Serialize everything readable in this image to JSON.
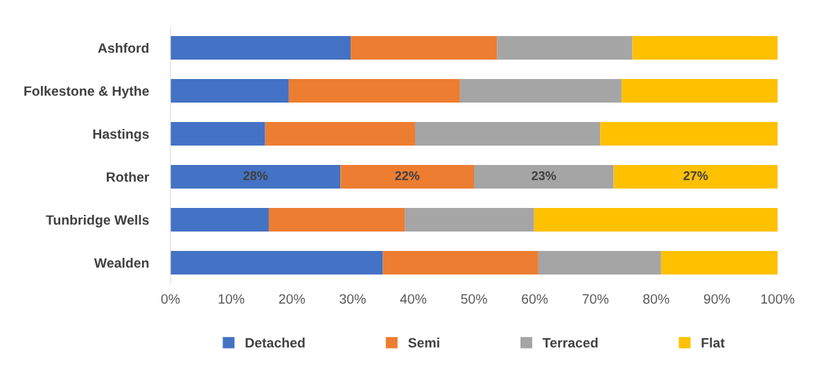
{
  "chart_data": {
    "type": "bar",
    "orientation": "horizontal",
    "stacked": true,
    "categories": [
      "Ashford",
      "Folkestone & Hythe",
      "Hastings",
      "Rother",
      "Tunbridge Wells",
      "Wealden"
    ],
    "series": [
      {
        "name": "Detached",
        "color": "#4472c4",
        "values": [
          29.7,
          19.5,
          15.6,
          28,
          16.2,
          35.0
        ],
        "value_labels": [
          null,
          null,
          null,
          "28%",
          null,
          null
        ]
      },
      {
        "name": "Semi",
        "color": "#ed7d31",
        "values": [
          24.1,
          28.2,
          24.7,
          22,
          22.4,
          25.6
        ],
        "value_labels": [
          null,
          null,
          null,
          "22%",
          null,
          null
        ]
      },
      {
        "name": "Terraced",
        "color": "#a5a5a5",
        "values": [
          22.3,
          26.6,
          30.5,
          23,
          21.3,
          20.2
        ],
        "value_labels": [
          null,
          null,
          null,
          "23%",
          null,
          null
        ]
      },
      {
        "name": "Flat",
        "color": "#ffc000",
        "values": [
          23.9,
          25.7,
          29.2,
          27,
          40.1,
          19.2
        ],
        "value_labels": [
          null,
          null,
          null,
          "27%",
          null,
          null
        ]
      }
    ],
    "xlim": [
      0,
      100
    ],
    "xticks": [
      {
        "value": 0,
        "label": "0%"
      },
      {
        "value": 10,
        "label": "10%"
      },
      {
        "value": 20,
        "label": "20%"
      },
      {
        "value": 30,
        "label": "30%"
      },
      {
        "value": 40,
        "label": "40%"
      },
      {
        "value": 50,
        "label": "50%"
      },
      {
        "value": 60,
        "label": "60%"
      },
      {
        "value": 70,
        "label": "70%"
      },
      {
        "value": 80,
        "label": "80%"
      },
      {
        "value": 90,
        "label": "90%"
      },
      {
        "value": 100,
        "label": "100%"
      }
    ],
    "grid": false,
    "legend": "bottom"
  }
}
